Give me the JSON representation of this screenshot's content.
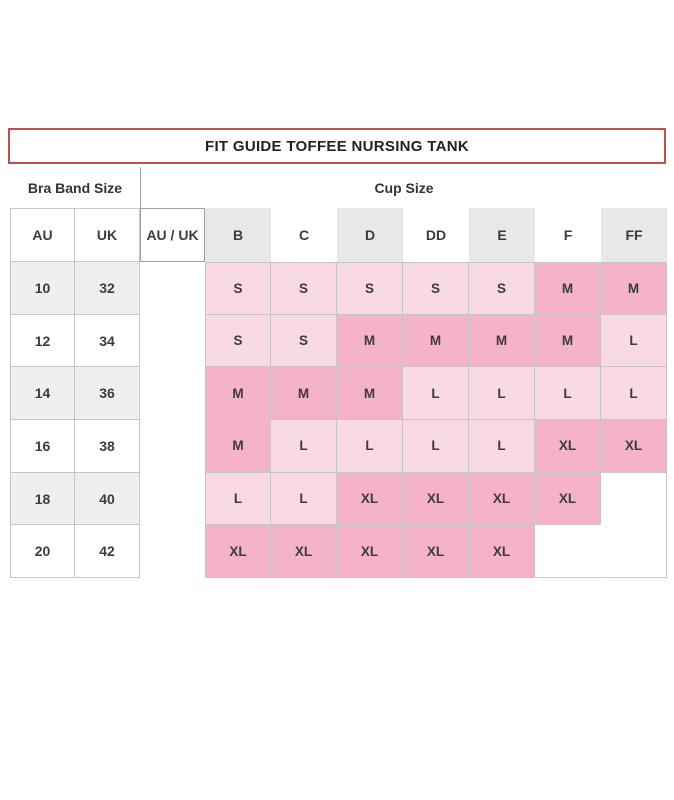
{
  "chart_data": {
    "type": "table",
    "title": "FIT GUIDE TOFFEE NURSING TANK",
    "column_groups": {
      "band": "Bra Band Size",
      "cup": "Cup Size"
    },
    "columns": [
      "AU",
      "UK",
      "AU / UK",
      "B",
      "C",
      "D",
      "DD",
      "E",
      "F",
      "FF"
    ],
    "rows": [
      {
        "au": "10",
        "uk": "32",
        "sizes": [
          "S",
          "S",
          "S",
          "S",
          "S",
          "M",
          "M"
        ]
      },
      {
        "au": "12",
        "uk": "34",
        "sizes": [
          "S",
          "S",
          "M",
          "M",
          "M",
          "M",
          "L"
        ]
      },
      {
        "au": "14",
        "uk": "36",
        "sizes": [
          "M",
          "M",
          "M",
          "L",
          "L",
          "L",
          "L"
        ]
      },
      {
        "au": "16",
        "uk": "38",
        "sizes": [
          "M",
          "L",
          "L",
          "L",
          "L",
          "XL",
          "XL"
        ]
      },
      {
        "au": "18",
        "uk": "40",
        "sizes": [
          "L",
          "L",
          "XL",
          "XL",
          "XL",
          "XL",
          ""
        ]
      },
      {
        "au": "20",
        "uk": "42",
        "sizes": [
          "XL",
          "XL",
          "XL",
          "XL",
          "XL",
          "",
          ""
        ]
      }
    ]
  },
  "size_tones": {
    "S": "light",
    "M": "medium",
    "L": "light",
    "XL": "medium"
  },
  "colors": {
    "light_pink": "#f9d9e2",
    "medium_pink": "#f5b3c8",
    "header_gray": "#e8e8e8",
    "band_row_gray": "#efefef",
    "grid_border": "#c6c6c6",
    "title_border_red": "#c0504d"
  }
}
